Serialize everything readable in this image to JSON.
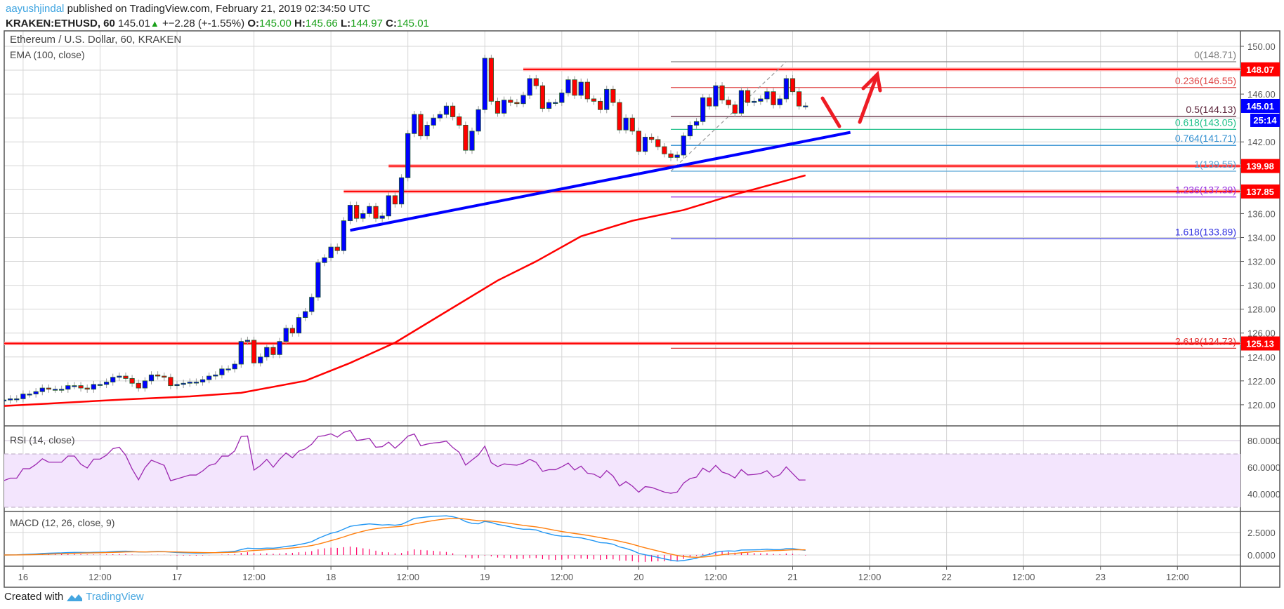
{
  "header": {
    "author": "aayushjindal",
    "published": "published on TradingView.com, February 21, 2019 02:34:50 UTC",
    "symbol": "KRAKEN:ETHUSD, 60",
    "last": "145.01",
    "change": "+−2.28 (+-1.55%)",
    "o_label": "O:",
    "o": "145.00",
    "h_label": "H:",
    "h": "145.66",
    "l_label": "L:",
    "l": "144.97",
    "c_label": "C:",
    "c": "145.01",
    "change_icon": "triangle-up-icon"
  },
  "footer": {
    "created_with": "Created with",
    "brand": "TradingView",
    "logo_icon": "tradingview-cloud-icon"
  },
  "colors": {
    "up_candle": "#0000ff",
    "down_candle": "#ff0000",
    "candle_border": "#1f5a2a",
    "ema": "#ff0000",
    "trendline": "#0000ff",
    "resistance": "#ff0000",
    "rsi": "#9c27b0",
    "rsi_band": "#f3e5fd",
    "macd": "#2196f3",
    "signal": "#ff7f0e",
    "histogram": "#ff0066"
  },
  "chart_data": {
    "type": "candlestick",
    "title": "Ethereum / U.S. Dollar, 60, KRAKEN",
    "overlay_label": "EMA (100, close)",
    "start": "2019-02-15 21:00",
    "interval_minutes": 60,
    "closes": [
      120.4,
      120.5,
      120.5,
      120.9,
      120.9,
      121.1,
      121.4,
      121.3,
      121.3,
      121.3,
      121.6,
      121.6,
      121.4,
      121.3,
      121.7,
      121.7,
      121.9,
      122.3,
      122.4,
      122.2,
      121.8,
      121.4,
      122.0,
      122.5,
      122.4,
      122.3,
      121.6,
      121.7,
      121.8,
      121.9,
      121.9,
      122.1,
      122.4,
      122.5,
      123.0,
      123.0,
      123.4,
      125.3,
      125.4,
      123.5,
      124.0,
      124.8,
      124.2,
      125.3,
      126.4,
      126.0,
      127.3,
      127.8,
      129.0,
      131.9,
      132.3,
      133.2,
      132.9,
      135.4,
      136.7,
      135.6,
      136.0,
      136.6,
      135.6,
      135.8,
      137.5,
      136.8,
      139.0,
      142.7,
      144.3,
      142.5,
      143.4,
      144.0,
      144.3,
      145.0,
      144.1,
      143.4,
      141.3,
      142.9,
      144.7,
      149.0,
      145.4,
      144.4,
      145.5,
      145.3,
      145.2,
      145.9,
      147.3,
      146.7,
      144.8,
      145.3,
      145.3,
      146.1,
      147.2,
      145.9,
      147.0,
      145.6,
      145.4,
      144.7,
      146.4,
      145.3,
      143.0,
      144.0,
      142.9,
      141.2,
      142.4,
      142.2,
      141.6,
      141.0,
      140.7,
      140.9,
      142.5,
      143.4,
      143.7,
      145.7,
      145.0,
      146.7,
      145.5,
      145.1,
      144.4,
      146.3,
      145.3,
      145.4,
      145.6,
      146.2,
      145.1,
      145.6,
      147.3,
      146.2,
      145.0,
      145.01
    ],
    "ema_100": [
      {
        "t": "2019-02-15 21:00",
        "v": 119.9
      },
      {
        "t": "2019-02-16 16:00",
        "v": 120.45
      },
      {
        "t": "2019-02-17 02:00",
        "v": 120.7
      },
      {
        "t": "2019-02-17 10:00",
        "v": 121.0
      },
      {
        "t": "2019-02-17 20:00",
        "v": 122.0
      },
      {
        "t": "2019-02-18 03:00",
        "v": 123.5
      },
      {
        "t": "2019-02-18 10:00",
        "v": 125.2
      },
      {
        "t": "2019-02-19 02:00",
        "v": 130.4
      },
      {
        "t": "2019-02-19 08:00",
        "v": 132.0
      },
      {
        "t": "2019-02-19 15:00",
        "v": 134.1
      },
      {
        "t": "2019-02-19 23:00",
        "v": 135.4
      },
      {
        "t": "2019-02-20 07:00",
        "v": 136.3
      },
      {
        "t": "2019-02-20 15:00",
        "v": 137.6
      },
      {
        "t": "2019-02-21 02:00",
        "v": 139.2
      }
    ],
    "y_ticks": [
      150,
      146,
      142,
      136,
      134,
      132,
      130,
      128,
      126,
      124,
      122,
      120
    ],
    "y_range": [
      118.3,
      152.6
    ],
    "x_labels": [
      {
        "t": "2019-02-16 00:00",
        "label": "16"
      },
      {
        "t": "2019-02-16 12:00",
        "label": "12:00"
      },
      {
        "t": "2019-02-17 00:00",
        "label": "17"
      },
      {
        "t": "2019-02-17 12:00",
        "label": "12:00"
      },
      {
        "t": "2019-02-18 00:00",
        "label": "18"
      },
      {
        "t": "2019-02-18 12:00",
        "label": "12:00"
      },
      {
        "t": "2019-02-19 00:00",
        "label": "19"
      },
      {
        "t": "2019-02-19 12:00",
        "label": "12:00"
      },
      {
        "t": "2019-02-20 00:00",
        "label": "20"
      },
      {
        "t": "2019-02-20 12:00",
        "label": "12:00"
      },
      {
        "t": "2019-02-21 00:00",
        "label": "21"
      },
      {
        "t": "2019-02-21 12:00",
        "label": "12:00"
      },
      {
        "t": "2019-02-22 00:00",
        "label": "22"
      },
      {
        "t": "2019-02-22 12:00",
        "label": "12:00"
      },
      {
        "t": "2019-02-23 00:00",
        "label": "23"
      },
      {
        "t": "2019-02-23 12:00",
        "label": "12:00"
      }
    ],
    "horizontal_levels": [
      {
        "price": 148.07,
        "label": "148.07",
        "from": "2019-02-19 06:00"
      },
      {
        "price": 139.98,
        "label": "139.98",
        "from": "2019-02-18 09:00"
      },
      {
        "price": 137.85,
        "label": "137.85",
        "from": "2019-02-18 02:00"
      },
      {
        "price": 125.13,
        "label": "125.13",
        "from": "2019-02-15 21:00"
      }
    ],
    "trendline": {
      "from": {
        "t": "2019-02-18 03:00",
        "v": 134.6
      },
      "to": {
        "t": "2019-02-21 09:00",
        "v": 142.8
      }
    },
    "fibonacci": {
      "from": {
        "t": "2019-02-20 05:00",
        "v": 139.55
      },
      "to": {
        "t": "2019-02-20 23:00",
        "v": 148.71
      },
      "levels": [
        {
          "ratio": "0",
          "price": "148.71",
          "label": "0(148.71)",
          "color": "#808080"
        },
        {
          "ratio": "0.236",
          "price": "146.55",
          "label": "0.236(146.55)",
          "color": "#e04848"
        },
        {
          "ratio": "0.5",
          "price": "144.13",
          "label": "0.5(144.13)",
          "color": "#5a2238"
        },
        {
          "ratio": "0.618",
          "price": "143.05",
          "label": "0.618(143.05)",
          "color": "#20c08a"
        },
        {
          "ratio": "0.764",
          "price": "141.71",
          "label": "0.764(141.71)",
          "color": "#2f8ed0"
        },
        {
          "ratio": "1",
          "price": "139.55",
          "label": "1(139.55)",
          "color": "#5aa6d8"
        },
        {
          "ratio": "1.236",
          "price": "137.39",
          "label": "1.236(137.39)",
          "color": "#9a30e0"
        },
        {
          "ratio": "1.618",
          "price": "133.89",
          "label": "1.618(133.89)",
          "color": "#3434e0"
        },
        {
          "ratio": "2.618",
          "price": "124.73",
          "label": "2.618(124.73)",
          "color": "#e03030"
        }
      ]
    },
    "last_price": {
      "price": 145.01,
      "label": "145.01",
      "countdown": "25:14"
    },
    "rsi": {
      "label": "RSI (14, close)",
      "period": 14,
      "ticks": [
        "80.0000",
        "60.0000",
        "40.0000"
      ],
      "tick_values": [
        80,
        60,
        40
      ],
      "band": [
        30,
        70
      ]
    },
    "macd": {
      "label": "MACD (12, 26, close, 9)",
      "fast": 12,
      "slow": 26,
      "signal": 9,
      "ticks": [
        "2.5000",
        "0.0000"
      ],
      "tick_values": [
        2.5,
        0
      ]
    }
  }
}
